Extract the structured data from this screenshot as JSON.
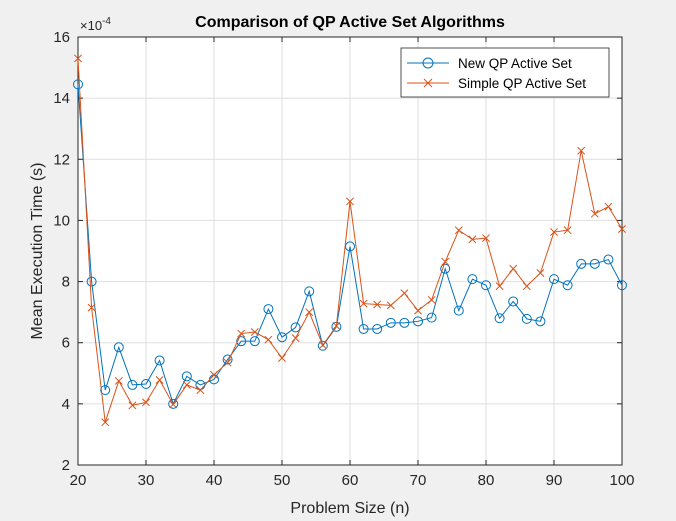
{
  "chart_data": {
    "type": "line",
    "title": "Comparison of QP Active Set Algorithms",
    "xlabel": "Problem Size (n)",
    "ylabel": "Mean Execution Time (s)",
    "y_exponent_base": "×10",
    "y_exponent_power": "-4",
    "xlim": [
      20,
      100
    ],
    "ylim": [
      2,
      16
    ],
    "xticks": [
      20,
      30,
      40,
      50,
      60,
      70,
      80,
      90,
      100
    ],
    "yticks": [
      2,
      4,
      6,
      8,
      10,
      12,
      14,
      16
    ],
    "grid": true,
    "legend_position": "top-right",
    "x": [
      20,
      22,
      24,
      26,
      28,
      30,
      32,
      34,
      36,
      38,
      40,
      42,
      44,
      46,
      48,
      50,
      52,
      54,
      56,
      58,
      60,
      62,
      64,
      66,
      68,
      70,
      72,
      74,
      76,
      78,
      80,
      82,
      84,
      86,
      88,
      90,
      92,
      94,
      96,
      98,
      100
    ],
    "series": [
      {
        "name": "New QP Active Set",
        "color": "#0072BD",
        "marker": "circle",
        "values": [
          14.45,
          8.0,
          4.45,
          5.85,
          4.62,
          4.65,
          5.42,
          4.0,
          4.9,
          4.62,
          4.8,
          5.45,
          6.05,
          6.05,
          7.1,
          6.18,
          6.5,
          7.68,
          5.9,
          6.52,
          9.15,
          6.45,
          6.45,
          6.65,
          6.65,
          6.7,
          6.82,
          8.42,
          7.05,
          8.08,
          7.88,
          6.8,
          7.35,
          6.78,
          6.7,
          8.08,
          7.88,
          8.58,
          8.58,
          8.72,
          7.88
        ]
      },
      {
        "name": "Simple QP Active Set",
        "color": "#D95319",
        "marker": "x",
        "values": [
          15.3,
          7.15,
          3.4,
          4.75,
          3.95,
          4.05,
          4.78,
          3.98,
          4.62,
          4.45,
          4.95,
          5.35,
          6.3,
          6.35,
          6.1,
          5.5,
          6.15,
          7.0,
          5.92,
          6.55,
          10.62,
          7.28,
          7.25,
          7.22,
          7.62,
          7.05,
          7.4,
          8.65,
          9.68,
          9.38,
          9.42,
          7.85,
          8.42,
          7.85,
          8.28,
          9.62,
          9.68,
          12.28,
          10.22,
          10.45,
          9.72
        ]
      }
    ]
  }
}
